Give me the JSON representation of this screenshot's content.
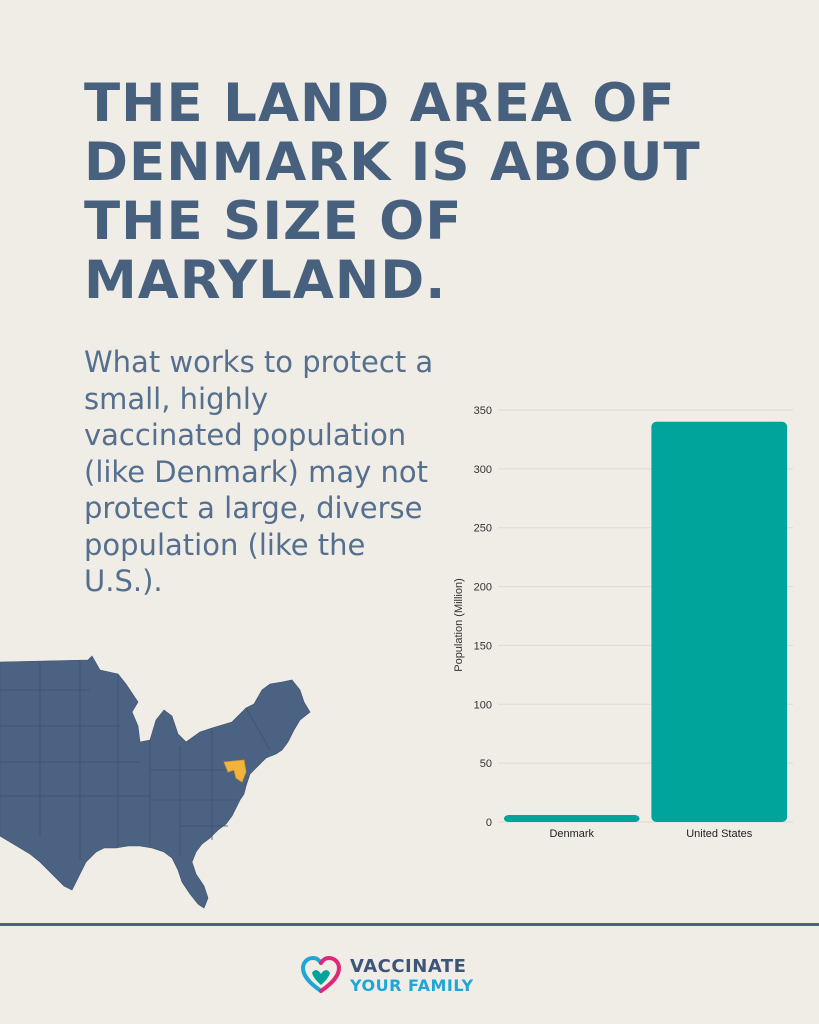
{
  "headline": "THE LAND AREA OF DENMARK IS ABOUT THE SIZE OF MARYLAND.",
  "subtext": "What works to protect a small, highly vaccinated population (like Denmark) may not protect a large, diverse population (like the U.S.).",
  "colors": {
    "headline": "#47607e",
    "bar": "#00a49a",
    "map_states": "#4b6282",
    "map_highlight": "#f0b43c",
    "background": "#f0ece6"
  },
  "chart_data": {
    "type": "bar",
    "categories": [
      "Denmark",
      "United States"
    ],
    "values": [
      5.9,
      340
    ],
    "title": "",
    "xlabel": "",
    "ylabel": "Population (Million)",
    "ylim": [
      0,
      350
    ],
    "yticks": [
      0,
      50,
      100,
      150,
      200,
      250,
      300,
      350
    ],
    "grid": true
  },
  "map": {
    "highlighted_state": "Maryland",
    "icon": "us-east-map"
  },
  "logo": {
    "line1": "VACCINATE",
    "line2": "YOUR FAMILY",
    "icon": "heart-logo-icon"
  }
}
